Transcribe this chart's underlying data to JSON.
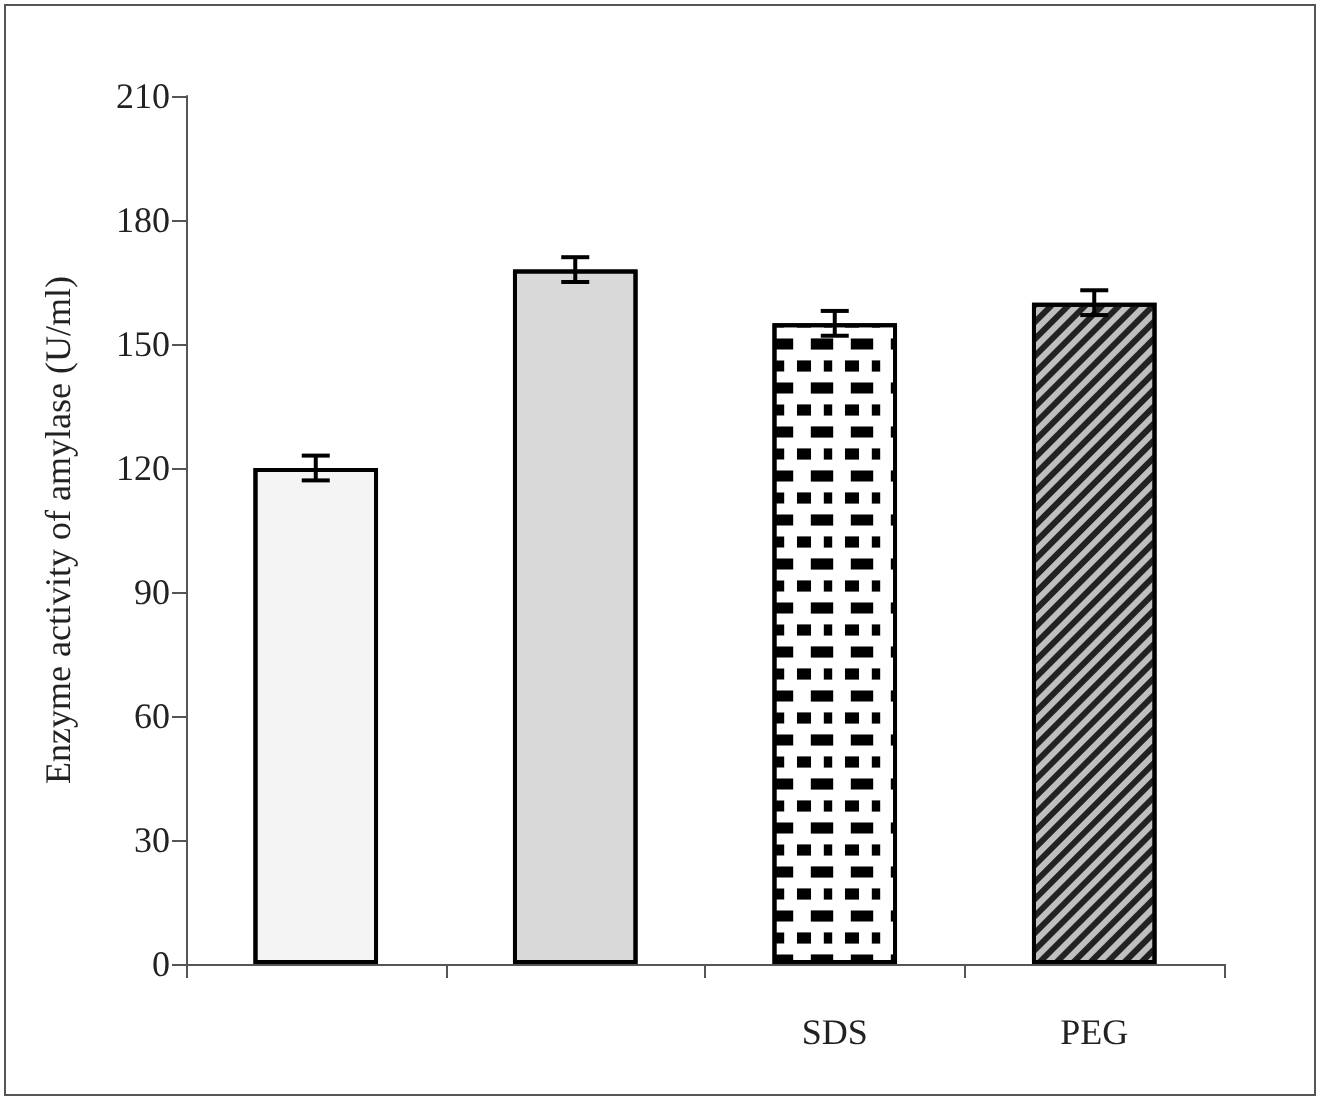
{
  "chart_data": {
    "type": "bar",
    "ylabel": "Enzyme activity of amylase (U/ml)",
    "categories": [
      null,
      null,
      "SDS",
      "PEG"
    ],
    "values": [
      120,
      168,
      155,
      160
    ],
    "errors": [
      3,
      3,
      3,
      3
    ],
    "colors": [
      "#f4f4f4",
      "#d9d9d9",
      "#ffffff",
      "#bfbfbf"
    ],
    "ylim": [
      0,
      210
    ],
    "yticks": [
      0,
      30,
      60,
      90,
      120,
      150,
      180,
      210
    ],
    "grid": false
  }
}
